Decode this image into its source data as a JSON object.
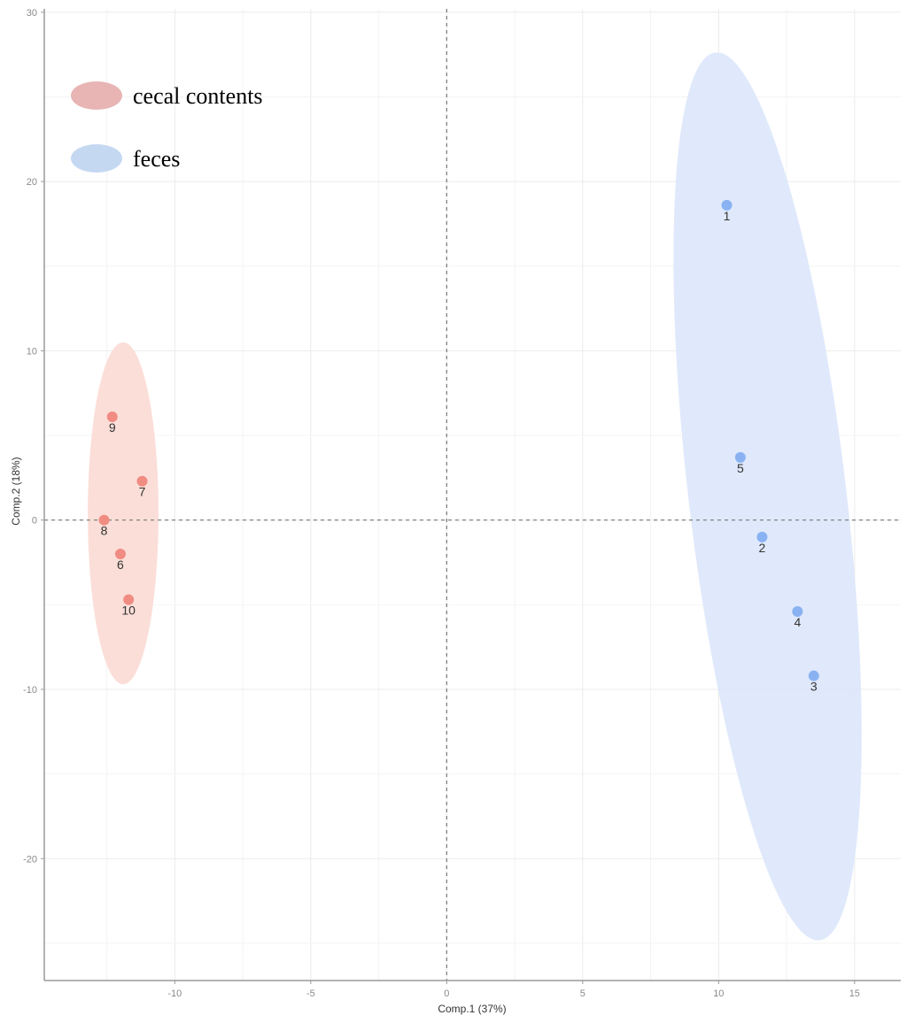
{
  "chart_data": {
    "type": "scatter",
    "title": "",
    "xlabel": "Comp.1 (37%)",
    "ylabel": "Comp.2 (18%)",
    "xlim": [
      -14.8,
      16.7
    ],
    "ylim": [
      -27.2,
      30.2
    ],
    "xticks": [
      -10,
      -5,
      0,
      5,
      10,
      15
    ],
    "yticks": [
      -20,
      -10,
      0,
      10,
      20,
      30
    ],
    "grid": true,
    "reference_lines": {
      "x": 0,
      "y": 0,
      "style": "dashed"
    },
    "legend_position": "top-left",
    "series": [
      {
        "name": "cecal contents",
        "color": "#f08c82",
        "ellipse_color": "#fbdcd6",
        "legend_color": "#e8b4b4",
        "points": [
          {
            "label": "6",
            "x": -12.0,
            "y": -2.0
          },
          {
            "label": "7",
            "x": -11.2,
            "y": 2.3
          },
          {
            "label": "8",
            "x": -12.6,
            "y": 0.0
          },
          {
            "label": "9",
            "x": -12.3,
            "y": 6.1
          },
          {
            "label": "10",
            "x": -11.7,
            "y": -4.7
          }
        ],
        "ellipse": {
          "cx": -11.9,
          "cy": 0.4,
          "rx": 1.3,
          "ry": 10.1,
          "angle_deg": 0
        }
      },
      {
        "name": "feces",
        "color": "#8ab2f2",
        "ellipse_color": "#dde8fb",
        "legend_color": "#c5d8f2",
        "points": [
          {
            "label": "1",
            "x": 10.3,
            "y": 18.6
          },
          {
            "label": "2",
            "x": 11.6,
            "y": -1.0
          },
          {
            "label": "3",
            "x": 13.5,
            "y": -9.2
          },
          {
            "label": "4",
            "x": 12.9,
            "y": -5.4
          },
          {
            "label": "5",
            "x": 10.8,
            "y": 3.7
          }
        ],
        "ellipse": {
          "cx": 11.8,
          "cy": 1.4,
          "rx": 2.9,
          "ry": 26.4,
          "angle_deg": -6.7
        }
      }
    ]
  }
}
